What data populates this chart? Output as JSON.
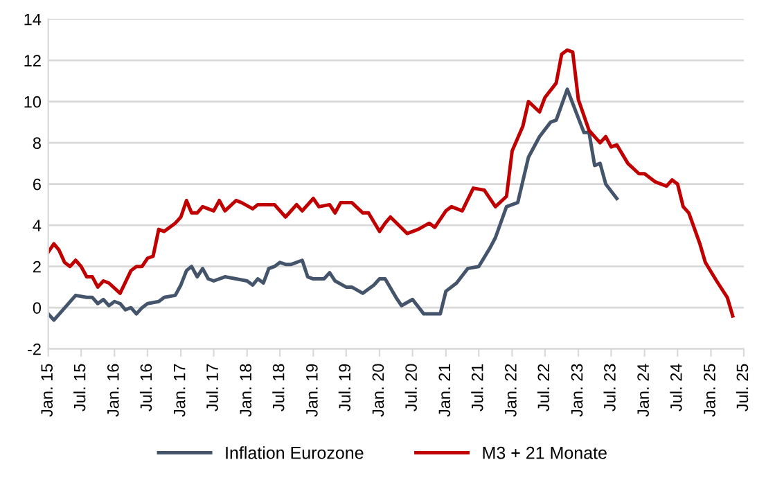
{
  "chart_data": {
    "type": "line",
    "legend": "bottom",
    "grid": "y",
    "marker": "none",
    "line_style": "solid",
    "xlim": [
      "2015-01",
      "2025-07"
    ],
    "ylim": [
      -2,
      14
    ],
    "yticks": [
      -2,
      0,
      2,
      4,
      6,
      8,
      10,
      12,
      14
    ],
    "xticks": [
      {
        "value": "2015-01",
        "label": "Jan. 15"
      },
      {
        "value": "2015-07",
        "label": "Jul. 15"
      },
      {
        "value": "2016-01",
        "label": "Jan. 16"
      },
      {
        "value": "2016-07",
        "label": "Jul. 16"
      },
      {
        "value": "2017-01",
        "label": "Jan. 17"
      },
      {
        "value": "2017-07",
        "label": "Jul. 17"
      },
      {
        "value": "2018-01",
        "label": "Jan. 18"
      },
      {
        "value": "2018-07",
        "label": "Jul. 18"
      },
      {
        "value": "2019-01",
        "label": "Jan. 19"
      },
      {
        "value": "2019-07",
        "label": "Jul. 19"
      },
      {
        "value": "2020-01",
        "label": "Jan. 20"
      },
      {
        "value": "2020-07",
        "label": "Jul. 20"
      },
      {
        "value": "2021-01",
        "label": "Jan. 21"
      },
      {
        "value": "2021-07",
        "label": "Jul. 21"
      },
      {
        "value": "2022-01",
        "label": "Jan. 22"
      },
      {
        "value": "2022-07",
        "label": "Jul. 22"
      },
      {
        "value": "2023-01",
        "label": "Jan. 23"
      },
      {
        "value": "2023-07",
        "label": "Jul. 23"
      },
      {
        "value": "2024-01",
        "label": "Jan. 24"
      },
      {
        "value": "2024-07",
        "label": "Jul. 24"
      },
      {
        "value": "2025-01",
        "label": "Jan. 25"
      },
      {
        "value": "2025-07",
        "label": "Jul. 25"
      }
    ],
    "series": [
      {
        "name": "Inflation Eurozone",
        "color": "#44546a",
        "x": [
          "2015-01",
          "2015-02",
          "2015-06",
          "2015-08",
          "2015-09",
          "2015-10",
          "2015-11",
          "2015-12",
          "2016-01",
          "2016-02",
          "2016-03",
          "2016-04",
          "2016-05",
          "2016-06",
          "2016-07",
          "2016-09",
          "2016-10",
          "2016-12",
          "2017-01",
          "2017-02",
          "2017-03",
          "2017-04",
          "2017-05",
          "2017-06",
          "2017-07",
          "2017-09",
          "2017-11",
          "2018-01",
          "2018-02",
          "2018-03",
          "2018-04",
          "2018-05",
          "2018-06",
          "2018-07",
          "2018-08",
          "2018-09",
          "2018-11",
          "2018-12",
          "2019-01",
          "2019-03",
          "2019-04",
          "2019-05",
          "2019-07",
          "2019-08",
          "2019-10",
          "2019-12",
          "2020-01",
          "2020-02",
          "2020-04",
          "2020-05",
          "2020-07",
          "2020-09",
          "2020-12",
          "2021-01",
          "2021-03",
          "2021-05",
          "2021-07",
          "2021-09",
          "2021-10",
          "2021-12",
          "2022-02",
          "2022-04",
          "2022-06",
          "2022-08",
          "2022-09",
          "2022-11",
          "2023-01",
          "2023-02",
          "2023-03",
          "2023-04",
          "2023-05",
          "2023-06",
          "2023-08"
        ],
        "values": [
          -0.3,
          -0.6,
          0.6,
          0.5,
          0.5,
          0.2,
          0.4,
          0.1,
          0.3,
          0.2,
          -0.1,
          0.0,
          -0.3,
          0.0,
          0.2,
          0.3,
          0.5,
          0.6,
          1.1,
          1.8,
          2.0,
          1.5,
          1.9,
          1.4,
          1.3,
          1.5,
          1.4,
          1.3,
          1.1,
          1.4,
          1.2,
          1.9,
          2.0,
          2.2,
          2.1,
          2.1,
          2.3,
          1.5,
          1.4,
          1.4,
          1.7,
          1.3,
          1.0,
          1.0,
          0.7,
          1.1,
          1.4,
          1.4,
          0.5,
          0.1,
          0.4,
          -0.3,
          -0.3,
          0.8,
          1.2,
          1.9,
          2.0,
          2.9,
          3.4,
          4.9,
          5.1,
          7.3,
          8.3,
          9.0,
          9.1,
          10.6,
          9.2,
          8.5,
          8.5,
          6.9,
          7.0,
          6.0,
          5.3
        ]
      },
      {
        "name": "M3 + 21 Monate",
        "color": "#c00000",
        "x": [
          "2015-01",
          "2015-02",
          "2015-03",
          "2015-04",
          "2015-05",
          "2015-06",
          "2015-07",
          "2015-08",
          "2015-09",
          "2015-10",
          "2015-11",
          "2015-12",
          "2016-02",
          "2016-04",
          "2016-05",
          "2016-06",
          "2016-07",
          "2016-08",
          "2016-09",
          "2016-10",
          "2016-12",
          "2017-01",
          "2017-02",
          "2017-03",
          "2017-04",
          "2017-05",
          "2017-07",
          "2017-08",
          "2017-09",
          "2017-11",
          "2017-12",
          "2018-02",
          "2018-03",
          "2018-06",
          "2018-08",
          "2018-10",
          "2018-11",
          "2019-01",
          "2019-02",
          "2019-04",
          "2019-05",
          "2019-06",
          "2019-08",
          "2019-10",
          "2019-11",
          "2020-01",
          "2020-02",
          "2020-03",
          "2020-06",
          "2020-08",
          "2020-10",
          "2020-11",
          "2021-01",
          "2021-02",
          "2021-04",
          "2021-06",
          "2021-08",
          "2021-10",
          "2021-12",
          "2022-01",
          "2022-03",
          "2022-04",
          "2022-06",
          "2022-07",
          "2022-09",
          "2022-10",
          "2022-11",
          "2022-12",
          "2023-01",
          "2023-03",
          "2023-05",
          "2023-06",
          "2023-07",
          "2023-08",
          "2023-10",
          "2023-12",
          "2024-01",
          "2024-03",
          "2024-05",
          "2024-06",
          "2024-07",
          "2024-08",
          "2024-09",
          "2024-11",
          "2024-12",
          "2025-02",
          "2025-04",
          "2025-05"
        ],
        "values": [
          2.7,
          3.1,
          2.8,
          2.2,
          2.0,
          2.3,
          2.0,
          1.5,
          1.5,
          1.0,
          1.3,
          1.2,
          0.7,
          1.8,
          2.0,
          2.0,
          2.4,
          2.5,
          3.8,
          3.7,
          4.1,
          4.4,
          5.2,
          4.6,
          4.6,
          4.9,
          4.7,
          5.2,
          4.7,
          5.2,
          5.1,
          4.8,
          5.0,
          5.0,
          4.4,
          5.0,
          4.7,
          5.3,
          4.9,
          5.0,
          4.6,
          5.1,
          5.1,
          4.6,
          4.6,
          3.7,
          4.1,
          4.4,
          3.6,
          3.8,
          4.1,
          3.9,
          4.7,
          4.9,
          4.7,
          5.8,
          5.7,
          4.9,
          5.4,
          7.6,
          8.8,
          10.0,
          9.5,
          10.2,
          10.9,
          12.3,
          12.5,
          12.4,
          10.1,
          8.6,
          8.0,
          8.3,
          7.8,
          7.9,
          7.0,
          6.5,
          6.5,
          6.1,
          5.9,
          6.2,
          6.0,
          4.9,
          4.6,
          3.1,
          2.2,
          1.3,
          0.5,
          -0.4
        ]
      }
    ]
  }
}
